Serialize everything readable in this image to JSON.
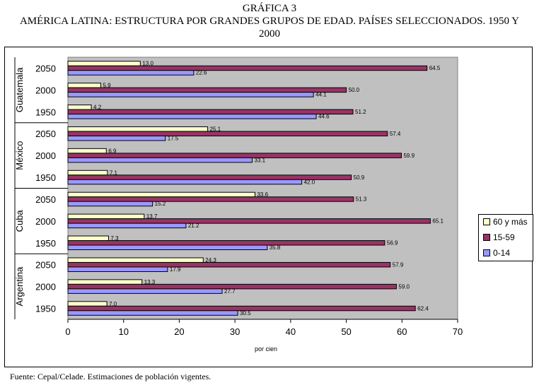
{
  "header": {
    "line1": "GRÁFICA 3",
    "line2": "AMÉRICA LATINA: ESTRUCTURA POR GRANDES GRUPOS DE EDAD. PAÍSES SELECCIONADOS. 1950 Y",
    "line3": "2000"
  },
  "footer": {
    "source": "Fuente: Cepal/Celade. Estimaciones de población vigentes."
  },
  "colors": {
    "age_60_plus": "#FFFFCC",
    "age_15_59": "#993366",
    "age_0_14": "#9999FF",
    "plot_bg": "#C0C0C0"
  },
  "chart_data": {
    "type": "bar",
    "orientation": "horizontal",
    "title": "AMÉRICA LATINA: ESTRUCTURA POR GRANDES GRUPOS DE EDAD. PAÍSES SELECCIONADOS. 1950 Y 2000",
    "xlabel": "por cien",
    "ylabel": "",
    "xlim": [
      0,
      70
    ],
    "xticks": [
      0,
      10,
      20,
      30,
      40,
      50,
      60,
      70
    ],
    "grid": false,
    "legend_position": "right",
    "series_names": [
      "60 y más",
      "15-59",
      "0-14"
    ],
    "groups": [
      {
        "country": "Guatemala",
        "rows": [
          {
            "year": "2050",
            "values": [
              13.0,
              64.5,
              22.6
            ],
            "labels": [
              "13.0",
              "64.5",
              "22.6"
            ]
          },
          {
            "year": "2000",
            "values": [
              5.9,
              50.0,
              44.1
            ],
            "labels": [
              "5.9",
              "50.0",
              "44.1"
            ]
          },
          {
            "year": "1950",
            "values": [
              4.2,
              51.2,
              44.6
            ],
            "labels": [
              "4.2",
              "51.2",
              "44.6"
            ]
          }
        ]
      },
      {
        "country": "México",
        "rows": [
          {
            "year": "2050",
            "values": [
              25.1,
              57.4,
              17.5
            ],
            "labels": [
              "25.1",
              "57.4",
              "17.5"
            ]
          },
          {
            "year": "2000",
            "values": [
              6.9,
              59.9,
              33.1
            ],
            "labels": [
              "6.9",
              "59.9",
              "33.1"
            ]
          },
          {
            "year": "1950",
            "values": [
              7.1,
              50.9,
              42.0
            ],
            "labels": [
              "7.1",
              "50.9",
              "42.0"
            ]
          }
        ]
      },
      {
        "country": "Cuba",
        "rows": [
          {
            "year": "2050",
            "values": [
              33.6,
              51.3,
              15.2
            ],
            "labels": [
              "33.6",
              "51.3",
              "15.2"
            ]
          },
          {
            "year": "2000",
            "values": [
              13.7,
              65.1,
              21.2
            ],
            "labels": [
              "13.7",
              "65.1",
              "21.2"
            ]
          },
          {
            "year": "1950",
            "values": [
              7.3,
              56.9,
              35.8
            ],
            "labels": [
              "7.3",
              "56.9",
              "35.8"
            ]
          }
        ]
      },
      {
        "country": "Argentina",
        "rows": [
          {
            "year": "2050",
            "values": [
              24.3,
              57.9,
              17.9
            ],
            "labels": [
              "24.3",
              "57.9",
              "17.9"
            ]
          },
          {
            "year": "2000",
            "values": [
              13.3,
              59.0,
              27.7
            ],
            "labels": [
              "13.3",
              "59.0",
              "27.7"
            ]
          },
          {
            "year": "1950",
            "values": [
              7.0,
              62.4,
              30.5
            ],
            "labels": [
              "7.0",
              "62.4",
              "30.5"
            ]
          }
        ]
      }
    ]
  }
}
